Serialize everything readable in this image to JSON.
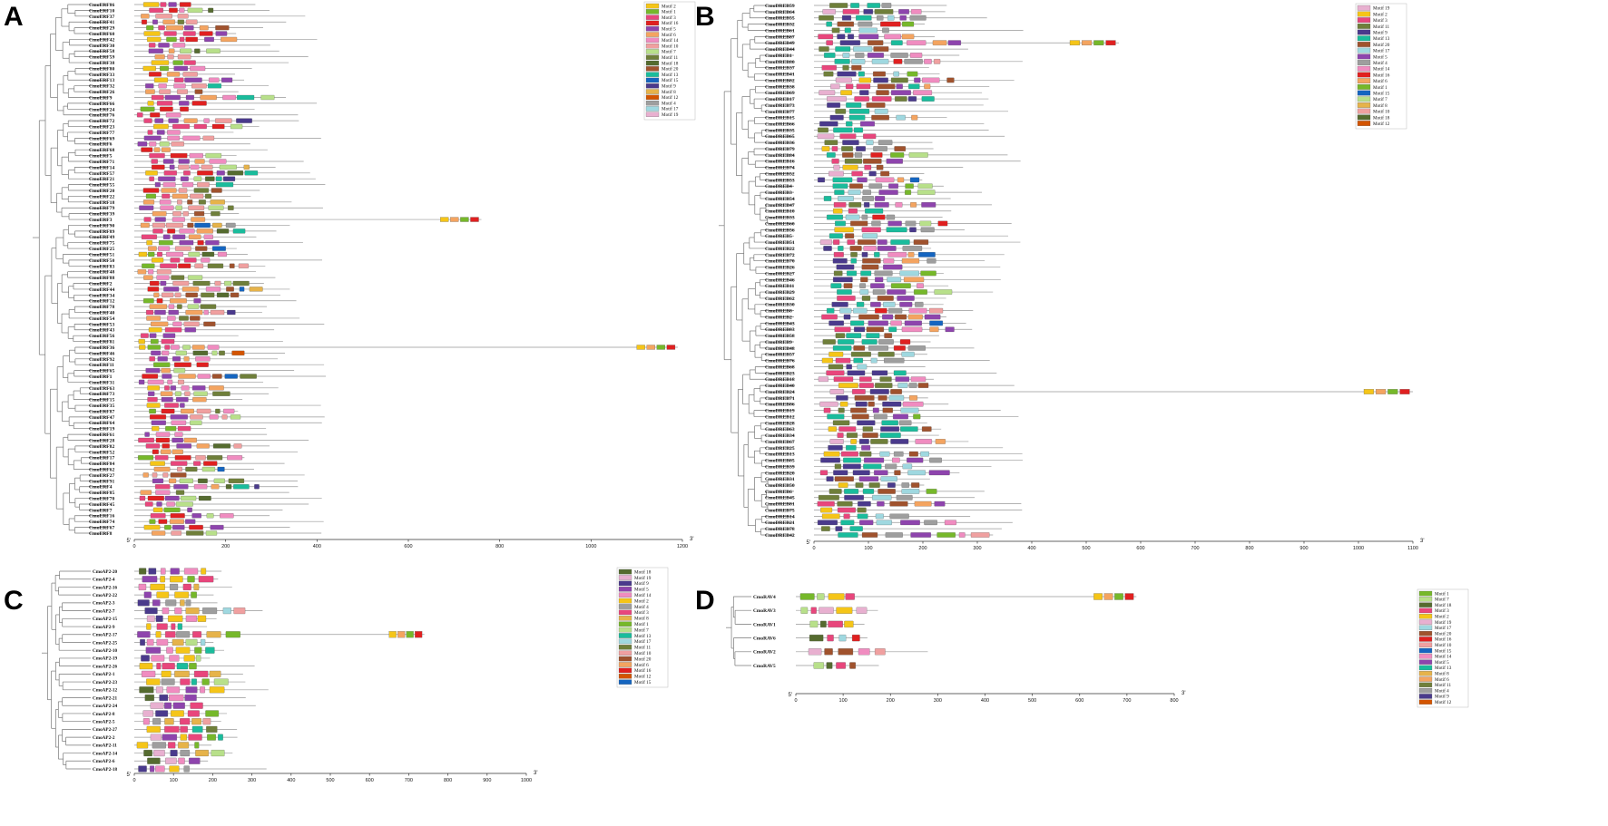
{
  "colors": {
    "Motif 1": "#76b82a",
    "Motif 2": "#f5c518",
    "Motif 3": "#e8467c",
    "Motif 4": "#9e9e9e",
    "Motif 5": "#8e44ad",
    "Motif 6": "#f4a460",
    "Motif 7": "#b8e08a",
    "Motif 8": "#e6b34a",
    "Motif 9": "#4a3a8c",
    "Motif 10": "#f0a0a0",
    "Motif 11": "#6f7f3a",
    "Motif 12": "#d35400",
    "Motif 13": "#1abc9c",
    "Motif 14": "#f08cc0",
    "Motif 15": "#1565c0",
    "Motif 16": "#e02020",
    "Motif 17": "#9fd8e0",
    "Motif 18": "#556b2f",
    "Motif 19": "#e8b0d0",
    "Motif 20": "#a0522d"
  },
  "panels": [
    {
      "label": "A",
      "origin": "5'",
      "end": "3'",
      "ticks": [
        "0",
        "200",
        "400",
        "600",
        "800",
        "1000",
        "1200"
      ],
      "legend": [
        "Motif 2",
        "Motif 1",
        "Motif 3",
        "Motif 16",
        "Motif 5",
        "Motif 6",
        "Motif 14",
        "Motif 10",
        "Motif 7",
        "Motif 11",
        "Motif 18",
        "Motif 20",
        "Motif 13",
        "Motif 15",
        "Motif 9",
        "Motif 8",
        "Motif 12",
        "Motif 4",
        "Motif 17",
        "Motif 19"
      ],
      "genes": [
        "CmoERF86",
        "CmoERF10",
        "CmoERF37",
        "CmoERF41",
        "CmoERF29",
        "CmoERF60",
        "CmoERF42",
        "CmoERF30",
        "CmoERF58",
        "CmoERF59",
        "CmoERF38",
        "CmoERF80",
        "CmoERF33",
        "CmoERF13",
        "CmoERF32",
        "CmoERF26",
        "CmoERF9",
        "CmoERF66",
        "CmoERF24",
        "CmoERF76",
        "CmoERF72",
        "CmoERF23",
        "CmoERF77",
        "CmoERF69",
        "CmoERF6",
        "CmoERF68",
        "CmoERF5",
        "CmoERF71",
        "CmoERF14",
        "CmoERF57",
        "CmoERF21",
        "CmoERF55",
        "CmoERF20",
        "CmoERF22",
        "CmoERF18",
        "CmoERF79",
        "CmoERF39",
        "CmoERF3",
        "CmoERF90",
        "CmoERF89",
        "CmoERF49",
        "CmoERF75",
        "CmoERF25",
        "CmoERF51",
        "CmoERF50",
        "CmoERF83",
        "CmoERF48",
        "CmoERF88",
        "CmoERF2",
        "CmoERF44",
        "CmoERF34",
        "CmoERF12",
        "CmoERF78",
        "CmoERF40",
        "CmoERF54",
        "CmoERF53",
        "CmoERF43",
        "CmoERF56",
        "CmoERF81",
        "CmoERF36",
        "CmoERF46",
        "CmoERF92",
        "CmoERF11",
        "CmoERF65",
        "CmoERF1",
        "CmoERF31",
        "CmoERF63",
        "CmoERF73",
        "CmoERF15",
        "CmoERF35",
        "CmoERF87",
        "CmoERF47",
        "CmoERF64",
        "CmoERF19",
        "CmoERF61",
        "CmoERF28",
        "CmoERF82",
        "CmoERF52",
        "CmoERF17",
        "CmoERF84",
        "CmoERF62",
        "CmoERF27",
        "CmoERF91",
        "CmoERF4",
        "CmoERF85",
        "CmoERF70",
        "CmoERF45",
        "CmoERF7",
        "CmoERF16",
        "CmoERF74",
        "CmoERF67",
        "CmoERF8"
      ]
    },
    {
      "label": "B",
      "origin": "5'",
      "end": "3'",
      "ticks": [
        "0",
        "100",
        "200",
        "300",
        "400",
        "500",
        "600",
        "700",
        "800",
        "900",
        "1000",
        "1100"
      ],
      "legend": [
        "Motif 19",
        "Motif 2",
        "Motif 3",
        "Motif 11",
        "Motif 9",
        "Motif 13",
        "Motif 20",
        "Motif 17",
        "Motif 5",
        "Motif 4",
        "Motif 14",
        "Motif 16",
        "Motif 6",
        "Motif 1",
        "Motif 15",
        "Motif 7",
        "Motif 8",
        "Motif 10",
        "Motif 18",
        "Motif 12"
      ],
      "genes": [
        "CmoDREB59",
        "CmoDREB64",
        "CmoDREB55",
        "CmoDREB32",
        "CmoDREB61",
        "CmoDREB87",
        "CmoDREB49",
        "CmoDREB44",
        "CmoDREB1",
        "CmoDREB80",
        "CmoDREB37",
        "CmoDREB41",
        "CmoDREB82",
        "CmoDREB38",
        "CmoDREB69",
        "CmoDREB17",
        "CmoDREB73",
        "CmoDREB77",
        "CmoDREB15",
        "CmoDREB66",
        "CmoDREB35",
        "CmoDREB65",
        "CmoDREB36",
        "CmoDREB79",
        "CmoDREB84",
        "CmoDREB16",
        "CmoDREB74",
        "CmoDREB52",
        "CmoDREB53",
        "CmoDREB4",
        "CmoDREB3",
        "CmoDREB54",
        "CmoDREB47",
        "CmoDREB10",
        "CmoDREB33",
        "CmoDREB60",
        "CmoDREB56",
        "CmoDREB5",
        "CmoDREB51",
        "CmoDREB22",
        "CmoDREB72",
        "CmoDREB70",
        "CmoDREB26",
        "CmoDREB27",
        "CmoDREB46",
        "CmoDREB11",
        "CmoDREB29",
        "CmoDREB62",
        "CmoDREB30",
        "CmoDREB8",
        "CmoDREB2",
        "CmoDREB43",
        "CmoDREB83",
        "CmoDREB58",
        "CmoDREB9",
        "CmoDREB48",
        "CmoDREB57",
        "CmoDREB76",
        "CmoDREB68",
        "CmoDREB23",
        "CmoDREB18",
        "CmoDREB40",
        "CmoDREB24",
        "CmoDREB71",
        "CmoDREB86",
        "CmoDREB19",
        "CmoDREB12",
        "CmoDREB28",
        "CmoDREB63",
        "CmoDREB34",
        "CmoDREB67",
        "CmoDREB25",
        "CmoDREB13",
        "CmoDREB85",
        "CmoDREB39",
        "CmoDREB20",
        "CmoDREB31",
        "CmoDREB50",
        "CmoDREB6",
        "CmoDREB45",
        "CmoDREB81",
        "CmoDREB75",
        "CmoDREB14",
        "CmoDREB21",
        "CmoDREB78",
        "CmoDREB42"
      ]
    },
    {
      "label": "C",
      "origin": "5'",
      "end": "3'",
      "ticks": [
        "0",
        "100",
        "200",
        "300",
        "400",
        "500",
        "600",
        "700",
        "800",
        "900",
        "1000"
      ],
      "legend": [
        "Motif 18",
        "Motif 19",
        "Motif 9",
        "Motif 5",
        "Motif 14",
        "Motif 2",
        "Motif 4",
        "Motif 3",
        "Motif 8",
        "Motif 1",
        "Motif 7",
        "Motif 13",
        "Motif 17",
        "Motif 11",
        "Motif 10",
        "Motif 20",
        "Motif 6",
        "Motif 16",
        "Motif 12",
        "Motif 15"
      ],
      "genes": [
        "CmoAP2-20",
        "CmoAP2-4",
        "CmoAP2-16",
        "CmoAP2-22",
        "CmoAP2-3",
        "CmoAP2-7",
        "CmoAP2-15",
        "CmoAP2-9",
        "CmoAP2-17",
        "CmoAP2-25",
        "CmoAP2-10",
        "CmoAP2-19",
        "CmoAP2-26",
        "CmoAP2-1",
        "CmoAP2-23",
        "CmoAP2-12",
        "CmoAP2-21",
        "CmoAP2-24",
        "CmoAP2-8",
        "CmoAP2-5",
        "CmoAP2-27",
        "CmoAP2-2",
        "CmoAP2-11",
        "CmoAP2-14",
        "CmoAP2-6",
        "CmoAP2-18"
      ]
    },
    {
      "label": "D",
      "origin": "5'",
      "end": "3'",
      "ticks": [
        "0",
        "100",
        "200",
        "300",
        "400",
        "500",
        "600",
        "700",
        "800"
      ],
      "legend": [
        "Motif 1",
        "Motif 7",
        "Motif 18",
        "Motif 3",
        "Motif 2",
        "Motif 19",
        "Motif 17",
        "Motif 20",
        "Motif 16",
        "Motif 10",
        "Motif 15",
        "Motif 14",
        "Motif 5",
        "Motif 13",
        "Motif 8",
        "Motif 6",
        "Motif 11",
        "Motif 4",
        "Motif 9",
        "Motif 12"
      ],
      "genes": [
        "CmoRAV4",
        "CmoRAV3",
        "CmoRAV1",
        "CmoRAV6",
        "CmoRAV2",
        "CmoRAV5"
      ]
    }
  ]
}
